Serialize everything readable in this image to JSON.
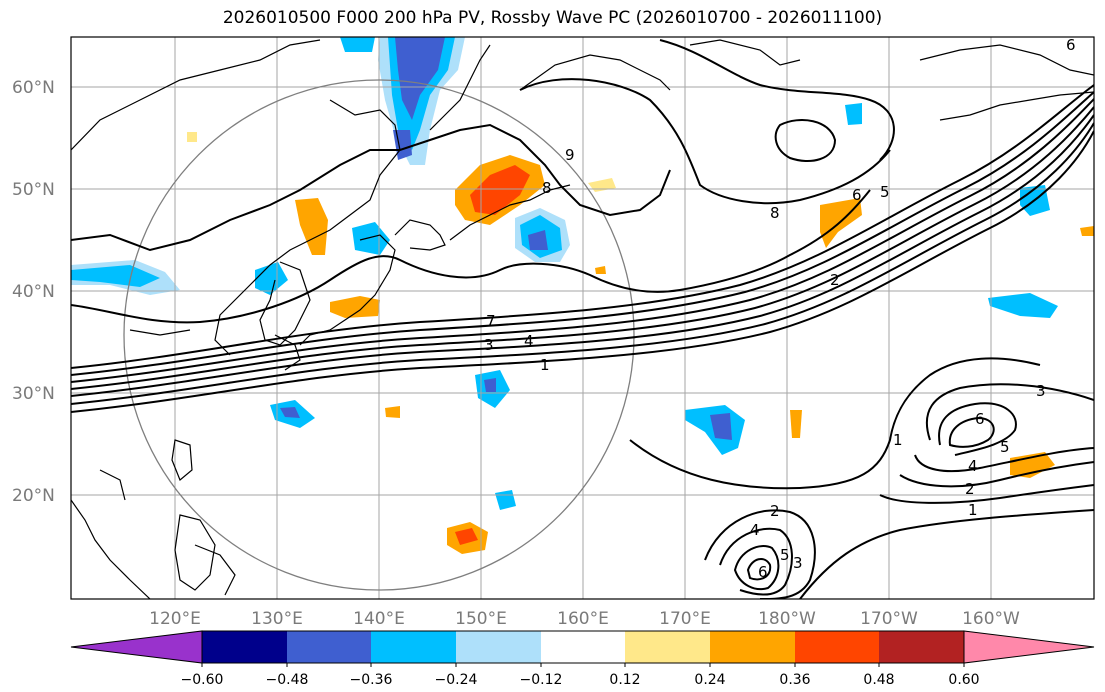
{
  "title": "2026010500 F000 200 hPa PV, Rossby Wave PC (2026010700 - 2026011100)",
  "map": {
    "lon_labels": [
      "120°E",
      "130°E",
      "140°E",
      "150°E",
      "160°E",
      "170°E",
      "180°W",
      "170°W",
      "160°W"
    ],
    "lat_labels": [
      "60°N",
      "50°N",
      "40°N",
      "30°N",
      "20°N"
    ],
    "contour_labels": [
      "7",
      "4",
      "3",
      "1",
      "8",
      "6",
      "5",
      "2",
      "9",
      "1",
      "3",
      "6",
      "5",
      "4",
      "2",
      "1",
      "2",
      "4",
      "6",
      "5",
      "3",
      "8",
      "6"
    ]
  },
  "colorbar": {
    "ticks": [
      "−0.60",
      "−0.48",
      "−0.36",
      "−0.24",
      "−0.12",
      "0.12",
      "0.24",
      "0.36",
      "0.48",
      "0.60"
    ],
    "colors": [
      "#9932cc",
      "#00008b",
      "#3f5fd0",
      "#00bfff",
      "#aee0fa",
      "#ffffff",
      "#ffe88a",
      "#ffa500",
      "#ff4500",
      "#b22222",
      "#ff88aa"
    ]
  }
}
